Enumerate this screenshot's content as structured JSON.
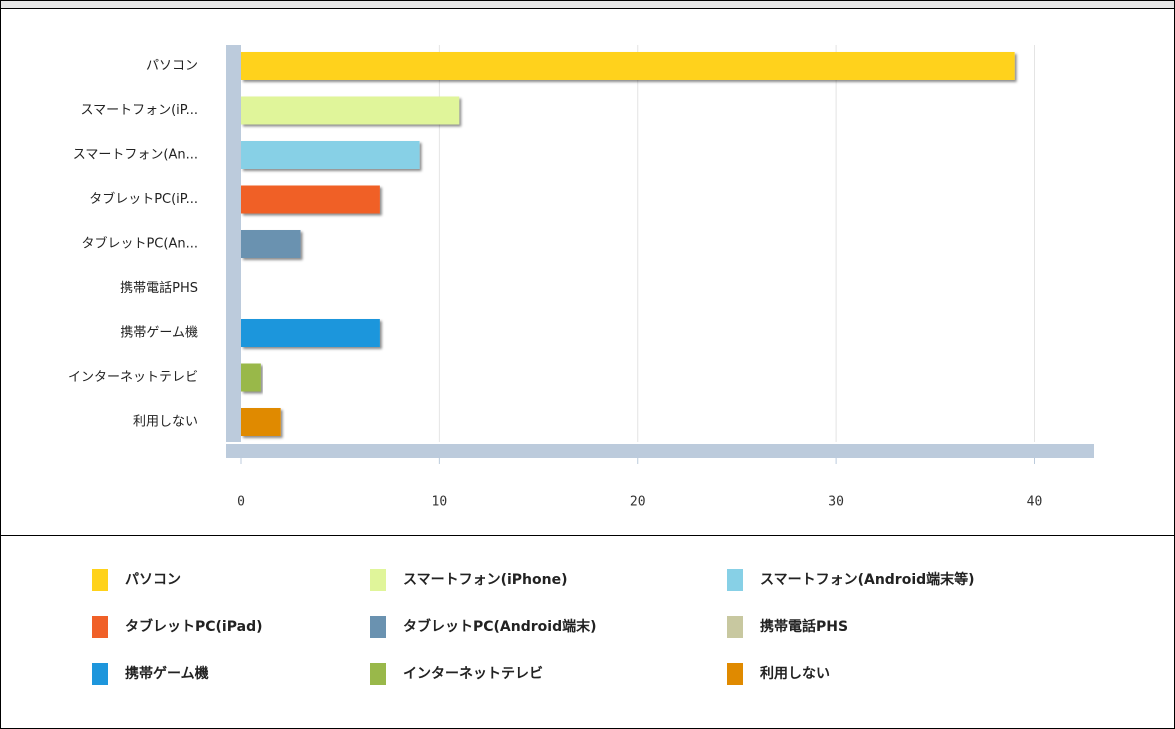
{
  "chart_data": {
    "type": "bar",
    "categories": [
      "パソコン",
      "スマートフォン(iP...",
      "スマートフォン(An...",
      "タブレットPC(iP...",
      "タブレットPC(An...",
      "携帯電話PHS",
      "携帯ゲーム機",
      "インターネットテレビ",
      "利用しない"
    ],
    "values": [
      39,
      11,
      9,
      7,
      3,
      0,
      7,
      1,
      2
    ],
    "colors": [
      "#ffd21a",
      "#e0f59a",
      "#87d0e6",
      "#f06028",
      "#6a92b0",
      "#c8c8a0",
      "#1e96dc",
      "#99b84a",
      "#e08a00"
    ],
    "legend": [
      "パソコン",
      "スマートフォン(iPhone)",
      "スマートフォン(Android端末等)",
      "タブレットPC(iPad)",
      "タブレットPC(Android端末)",
      "携帯電話PHS",
      "携帯ゲーム機",
      "インターネットテレビ",
      "利用しない"
    ],
    "xlim": [
      0,
      43
    ],
    "xticks": [
      0,
      10,
      20,
      30,
      40
    ],
    "grid": true
  }
}
